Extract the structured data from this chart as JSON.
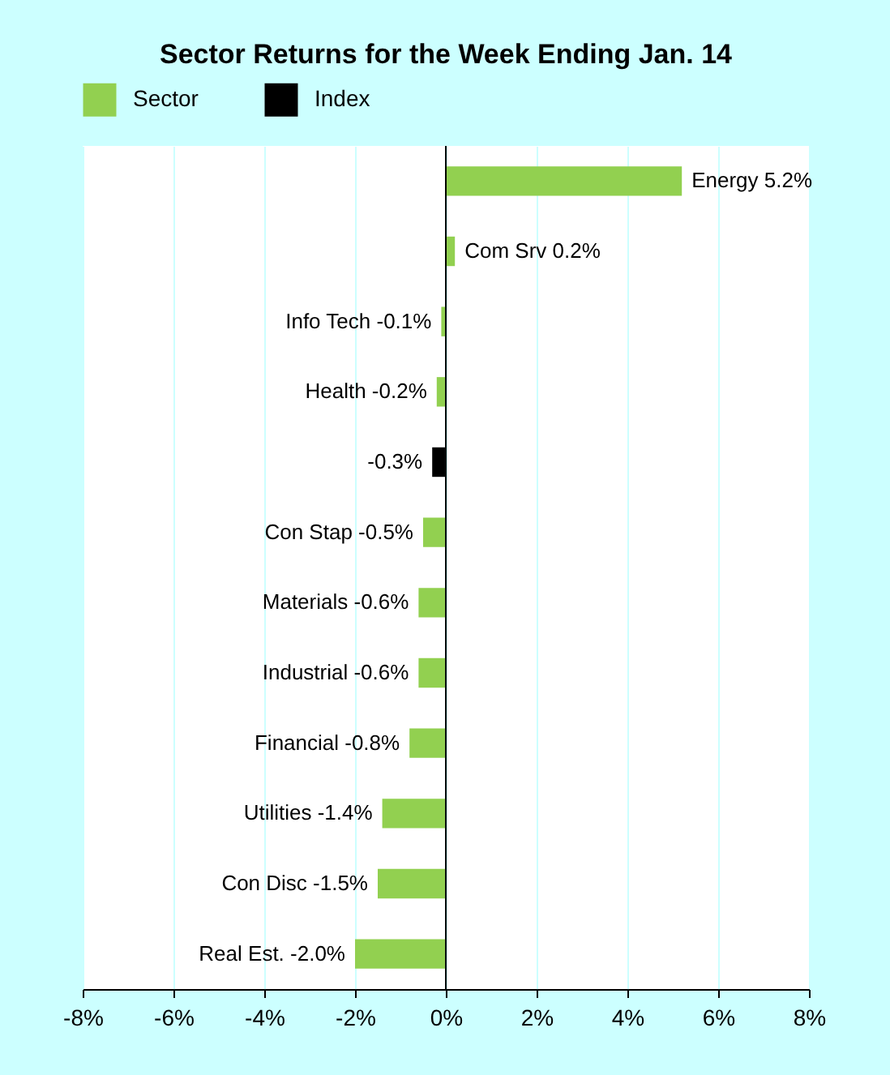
{
  "chart_data": {
    "type": "bar",
    "orientation": "horizontal",
    "title": "Sector Returns for the Week Ending Jan. 14",
    "categories": [
      "Energy",
      "Com Srv",
      "Info Tech",
      "Health",
      null,
      "Con Stap",
      "Materials",
      "Industrial",
      "Financial",
      "Utilities",
      "Con Disc",
      "Real Est."
    ],
    "series": [
      {
        "name": "Sector",
        "color": "#92d050",
        "values": [
          5.2,
          0.2,
          -0.1,
          -0.2,
          null,
          -0.5,
          -0.6,
          -0.6,
          -0.8,
          -1.4,
          -1.5,
          -2.0
        ],
        "value_labels": [
          "5.2%",
          "0.2%",
          "-0.1%",
          "-0.2%",
          null,
          "-0.5%",
          "-0.6%",
          "-0.6%",
          "-0.8%",
          "-1.4%",
          "-1.5%",
          "-2.0%"
        ]
      },
      {
        "name": "Index",
        "color": "#000000",
        "values": [
          null,
          null,
          null,
          null,
          -0.3,
          null,
          null,
          null,
          null,
          null,
          null,
          null
        ],
        "value_labels": [
          null,
          null,
          null,
          null,
          "-0.3%",
          null,
          null,
          null,
          null,
          null,
          null,
          null
        ]
      }
    ],
    "xlim": [
      -8,
      8
    ],
    "xticks": [
      {
        "value": -8,
        "label": "-8%"
      },
      {
        "value": -6,
        "label": "-6%"
      },
      {
        "value": -4,
        "label": "-4%"
      },
      {
        "value": -2,
        "label": "-2%"
      },
      {
        "value": 0,
        "label": "0%"
      },
      {
        "value": 2,
        "label": "2%"
      },
      {
        "value": 4,
        "label": "4%"
      },
      {
        "value": 6,
        "label": "6%"
      },
      {
        "value": 8,
        "label": "8%"
      }
    ],
    "grid": "x",
    "legend": "top",
    "tick_labels": "x"
  }
}
